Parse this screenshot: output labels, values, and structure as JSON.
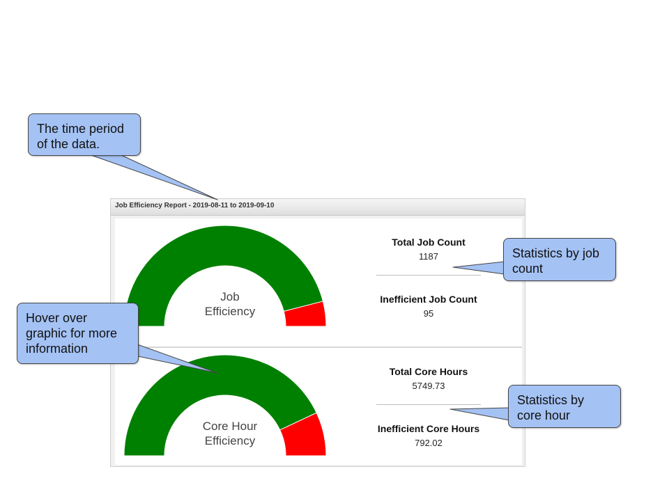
{
  "report": {
    "header_title": "Job Efficiency Report - 2019-08-11 to 2019-09-10"
  },
  "job_section": {
    "gauge_label_line1": "Job",
    "gauge_label_line2": "Efficiency",
    "efficient_fraction": 0.92,
    "stats": [
      {
        "title": "Total Job Count",
        "value": "1187"
      },
      {
        "title": "Inefficient Job Count",
        "value": "95"
      }
    ]
  },
  "core_section": {
    "gauge_label_line1": "Core Hour",
    "gauge_label_line2": "Efficiency",
    "efficient_fraction": 0.86,
    "stats": [
      {
        "title": "Total Core Hours",
        "value": "5749.73"
      },
      {
        "title": "Inefficient Core Hours",
        "value": "792.02"
      }
    ]
  },
  "callouts": {
    "time_period": "The time period of the data.",
    "hover": "Hover over graphic for more information",
    "job_stats": "Statistics by job count",
    "core_stats": "Statistics by core hour"
  },
  "colors": {
    "efficient": "#008000",
    "inefficient": "#ff0000",
    "callout_fill": "#a4c2f4"
  }
}
